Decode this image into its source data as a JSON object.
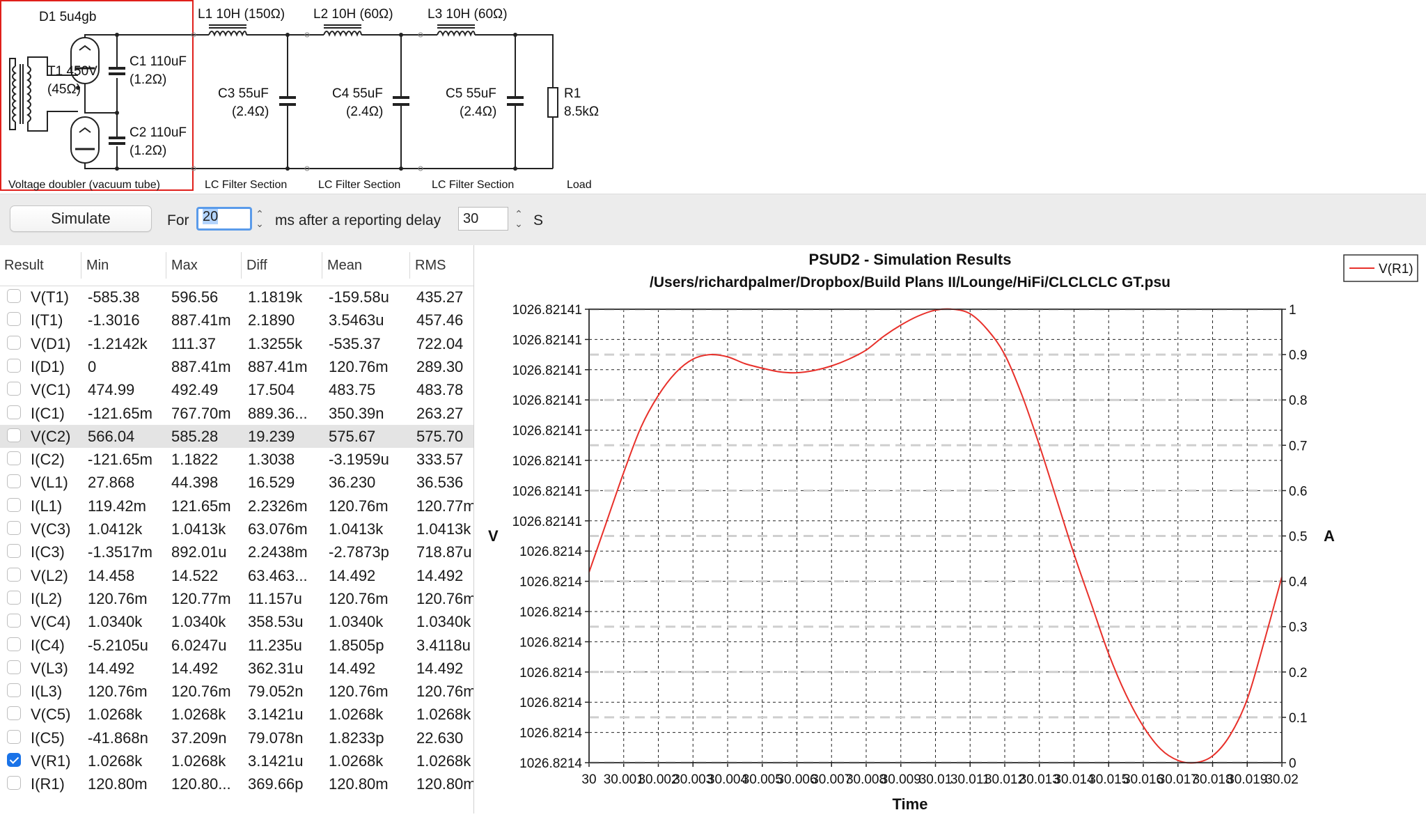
{
  "schematic": {
    "d1_label": "D1 5u4gb",
    "t1_label": "T1 450V",
    "t1_res": "(45Ω)",
    "c1_label": "C1 110uF",
    "c1_res": "(1.2Ω)",
    "c2_label": "C2 110uF",
    "c2_res": "(1.2Ω)",
    "l1_label": "L1 10H (150Ω)",
    "l2_label": "L2 10H (60Ω)",
    "l3_label": "L3 10H (60Ω)",
    "c3_label": "C3 55uF",
    "c3_res": "(2.4Ω)",
    "c4_label": "C4 55uF",
    "c4_res": "(2.4Ω)",
    "c5_label": "C5 55uF",
    "c5_res": "(2.4Ω)",
    "r1_label": "R1",
    "r1_value": "8.5kΩ",
    "sections": [
      "Voltage doubler (vacuum tube)",
      "LC Filter Section",
      "LC Filter Section",
      "LC Filter Section",
      "Load"
    ],
    "highlight_color": "#e0201b"
  },
  "toolbar": {
    "simulate_label": "Simulate",
    "for_label": "For",
    "for_value": "20",
    "after_label": "ms  after a reporting delay",
    "delay_value": "30",
    "s_label": "S"
  },
  "results": {
    "columns": [
      "Result",
      "Min",
      "Max",
      "Diff",
      "Mean",
      "RMS"
    ],
    "rows": [
      {
        "name": "V(T1)",
        "min": "-585.38",
        "max": "596.56",
        "diff": "1.1819k",
        "mean": "-159.58u",
        "rms": "435.27",
        "checked": false,
        "selected": false
      },
      {
        "name": "I(T1)",
        "min": "-1.3016",
        "max": "887.41m",
        "diff": "2.1890",
        "mean": "3.5463u",
        "rms": "457.46",
        "checked": false,
        "selected": false
      },
      {
        "name": "V(D1)",
        "min": "-1.2142k",
        "max": "111.37",
        "diff": "1.3255k",
        "mean": "-535.37",
        "rms": "722.04",
        "checked": false,
        "selected": false
      },
      {
        "name": "I(D1)",
        "min": "0",
        "max": "887.41m",
        "diff": "887.41m",
        "mean": "120.76m",
        "rms": "289.30",
        "checked": false,
        "selected": false
      },
      {
        "name": "V(C1)",
        "min": "474.99",
        "max": "492.49",
        "diff": "17.504",
        "mean": "483.75",
        "rms": "483.78",
        "checked": false,
        "selected": false
      },
      {
        "name": "I(C1)",
        "min": "-121.65m",
        "max": "767.70m",
        "diff": "889.36...",
        "mean": "350.39n",
        "rms": "263.27",
        "checked": false,
        "selected": false
      },
      {
        "name": "V(C2)",
        "min": "566.04",
        "max": "585.28",
        "diff": "19.239",
        "mean": "575.67",
        "rms": "575.70",
        "checked": false,
        "selected": true
      },
      {
        "name": "I(C2)",
        "min": "-121.65m",
        "max": "1.1822",
        "diff": "1.3038",
        "mean": "-3.1959u",
        "rms": "333.57",
        "checked": false,
        "selected": false
      },
      {
        "name": "V(L1)",
        "min": "27.868",
        "max": "44.398",
        "diff": "16.529",
        "mean": "36.230",
        "rms": "36.536",
        "checked": false,
        "selected": false
      },
      {
        "name": "I(L1)",
        "min": "119.42m",
        "max": "121.65m",
        "diff": "2.2326m",
        "mean": "120.76m",
        "rms": "120.77m",
        "checked": false,
        "selected": false
      },
      {
        "name": "V(C3)",
        "min": "1.0412k",
        "max": "1.0413k",
        "diff": "63.076m",
        "mean": "1.0413k",
        "rms": "1.0413k",
        "checked": false,
        "selected": false
      },
      {
        "name": "I(C3)",
        "min": "-1.3517m",
        "max": "892.01u",
        "diff": "2.2438m",
        "mean": "-2.7873p",
        "rms": "718.87u",
        "checked": false,
        "selected": false
      },
      {
        "name": "V(L2)",
        "min": "14.458",
        "max": "14.522",
        "diff": "63.463...",
        "mean": "14.492",
        "rms": "14.492",
        "checked": false,
        "selected": false
      },
      {
        "name": "I(L2)",
        "min": "120.76m",
        "max": "120.77m",
        "diff": "11.157u",
        "mean": "120.76m",
        "rms": "120.76m",
        "checked": false,
        "selected": false
      },
      {
        "name": "V(C4)",
        "min": "1.0340k",
        "max": "1.0340k",
        "diff": "358.53u",
        "mean": "1.0340k",
        "rms": "1.0340k",
        "checked": false,
        "selected": false
      },
      {
        "name": "I(C4)",
        "min": "-5.2105u",
        "max": "6.0247u",
        "diff": "11.235u",
        "mean": "1.8505p",
        "rms": "3.4118u",
        "checked": false,
        "selected": false
      },
      {
        "name": "V(L3)",
        "min": "14.492",
        "max": "14.492",
        "diff": "362.31u",
        "mean": "14.492",
        "rms": "14.492",
        "checked": false,
        "selected": false
      },
      {
        "name": "I(L3)",
        "min": "120.76m",
        "max": "120.76m",
        "diff": "79.052n",
        "mean": "120.76m",
        "rms": "120.76m",
        "checked": false,
        "selected": false
      },
      {
        "name": "V(C5)",
        "min": "1.0268k",
        "max": "1.0268k",
        "diff": "3.1421u",
        "mean": "1.0268k",
        "rms": "1.0268k",
        "checked": false,
        "selected": false
      },
      {
        "name": "I(C5)",
        "min": "-41.868n",
        "max": "37.209n",
        "diff": "79.078n",
        "mean": "1.8233p",
        "rms": "22.630",
        "checked": false,
        "selected": false
      },
      {
        "name": "V(R1)",
        "min": "1.0268k",
        "max": "1.0268k",
        "diff": "3.1421u",
        "mean": "1.0268k",
        "rms": "1.0268k",
        "checked": true,
        "selected": false
      },
      {
        "name": "I(R1)",
        "min": "120.80m",
        "max": "120.80...",
        "diff": "369.66p",
        "mean": "120.80m",
        "rms": "120.80m",
        "checked": false,
        "selected": false
      }
    ]
  },
  "chart_data": {
    "type": "line",
    "title": "PSUD2 - Simulation Results",
    "subtitle": "/Users/richardpalmer/Dropbox/Build Plans II/Lounge/HiFi/CLCLCLC GT.psu",
    "xlabel": "Time",
    "ylabel_left": "V",
    "ylabel_right": "A",
    "x_ticks": [
      "30",
      "30.001",
      "30.002",
      "30.003",
      "30.004",
      "30.005",
      "30.006",
      "30.007",
      "30.008",
      "30.009",
      "30.01",
      "30.011",
      "30.012",
      "30.013",
      "30.014",
      "30.015",
      "30.016",
      "30.017",
      "30.018",
      "30.019",
      "30.02"
    ],
    "y_left_ticks": [
      "1026.82141",
      "1026.82141",
      "1026.82141",
      "1026.82141",
      "1026.82141",
      "1026.82141",
      "1026.82141",
      "1026.82141",
      "1026.8214",
      "1026.8214",
      "1026.8214",
      "1026.8214",
      "1026.8214",
      "1026.8214",
      "1026.8214",
      "1026.8214"
    ],
    "y_right_ticks": [
      "0",
      "0.1",
      "0.2",
      "0.3",
      "0.4",
      "0.5",
      "0.6",
      "0.7",
      "0.8",
      "0.9",
      "1"
    ],
    "xlim": [
      30,
      30.02
    ],
    "ylim": [
      0,
      1
    ],
    "grid": true,
    "legend": "top-right",
    "series": [
      {
        "name": "V(R1)",
        "color": "#e8302a",
        "x": [
          30,
          30.0005,
          30.001,
          30.0015,
          30.002,
          30.0025,
          30.003,
          30.0035,
          30.004,
          30.0045,
          30.005,
          30.0055,
          30.006,
          30.0065,
          30.007,
          30.0075,
          30.008,
          30.0085,
          30.009,
          30.0095,
          30.01,
          30.0105,
          30.011,
          30.0115,
          30.012,
          30.0125,
          30.013,
          30.0135,
          30.014,
          30.0145,
          30.015,
          30.0155,
          30.016,
          30.0165,
          30.017,
          30.0175,
          30.018,
          30.0185,
          30.019,
          30.0195,
          30.02
        ],
        "values": [
          0.42,
          0.53,
          0.64,
          0.74,
          0.81,
          0.86,
          0.89,
          0.9,
          0.895,
          0.88,
          0.87,
          0.862,
          0.86,
          0.865,
          0.875,
          0.89,
          0.91,
          0.94,
          0.965,
          0.985,
          0.998,
          1.0,
          0.99,
          0.955,
          0.9,
          0.81,
          0.7,
          0.58,
          0.46,
          0.35,
          0.24,
          0.15,
          0.08,
          0.03,
          0.005,
          0.0,
          0.015,
          0.06,
          0.14,
          0.27,
          0.41
        ]
      }
    ]
  }
}
